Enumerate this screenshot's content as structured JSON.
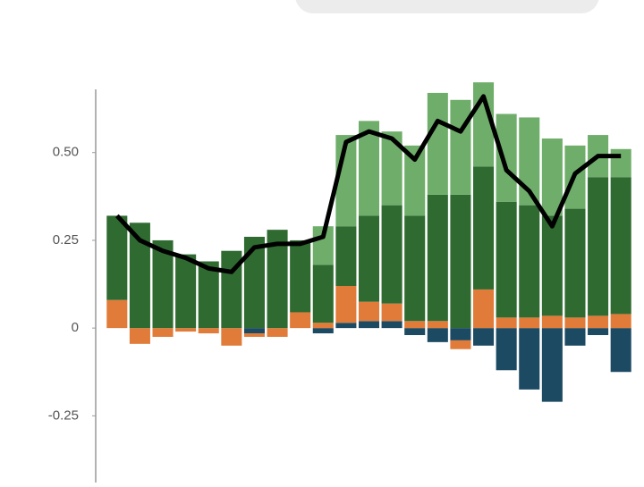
{
  "chart_data": {
    "type": "stacked-bar-line",
    "categories": [
      null,
      null,
      null,
      null,
      null,
      null,
      null,
      null,
      null,
      null,
      null,
      null,
      null,
      null,
      null,
      null,
      null,
      null,
      null,
      null,
      null,
      null,
      null
    ],
    "series": [
      {
        "color": "#1d4a63",
        "values": [
          0,
          0,
          0,
          0,
          0,
          0,
          -0.015,
          0,
          0,
          -0.015,
          0.015,
          0.02,
          0.02,
          -0.02,
          -0.04,
          -0.035,
          -0.05,
          -0.12,
          -0.175,
          -0.21,
          -0.05,
          -0.02,
          -0.125
        ]
      },
      {
        "color": "#e07b39",
        "values": [
          0.08,
          -0.045,
          -0.025,
          -0.01,
          -0.015,
          -0.05,
          -0.01,
          -0.025,
          0.045,
          0.015,
          0.105,
          0.055,
          0.05,
          0.02,
          0.02,
          -0.025,
          0.11,
          0.03,
          0.03,
          0.035,
          0.03,
          0.035,
          0.04
        ]
      },
      {
        "color": "#2f6a31",
        "values": [
          0.24,
          0.3,
          0.25,
          0.21,
          0.19,
          0.22,
          0.26,
          0.28,
          0.205,
          0.165,
          0.17,
          0.245,
          0.28,
          0.3,
          0.36,
          0.38,
          0.35,
          0.33,
          0.32,
          0.285,
          0.31,
          0.395,
          0.39
        ]
      },
      {
        "color": "#6fae6a",
        "values": [
          0,
          0,
          0,
          0,
          0,
          0,
          0,
          0,
          0,
          0.11,
          0.26,
          0.27,
          0.21,
          0.2,
          0.29,
          0.27,
          0.24,
          0.25,
          0.25,
          0.22,
          0.18,
          0.12,
          0.08
        ]
      }
    ],
    "line": {
      "color": "#000000",
      "values": [
        0.32,
        0.25,
        0.22,
        0.2,
        0.17,
        0.16,
        0.23,
        0.24,
        0.24,
        0.26,
        0.53,
        0.56,
        0.54,
        0.48,
        0.59,
        0.56,
        0.66,
        0.45,
        0.39,
        0.29,
        0.44,
        0.49,
        0.49
      ]
    },
    "ylim": [
      -0.44,
      0.68
    ],
    "yticks": [
      -0.25,
      0,
      0.25,
      {
        "value": 0.5,
        "label": "0.50"
      }
    ]
  }
}
